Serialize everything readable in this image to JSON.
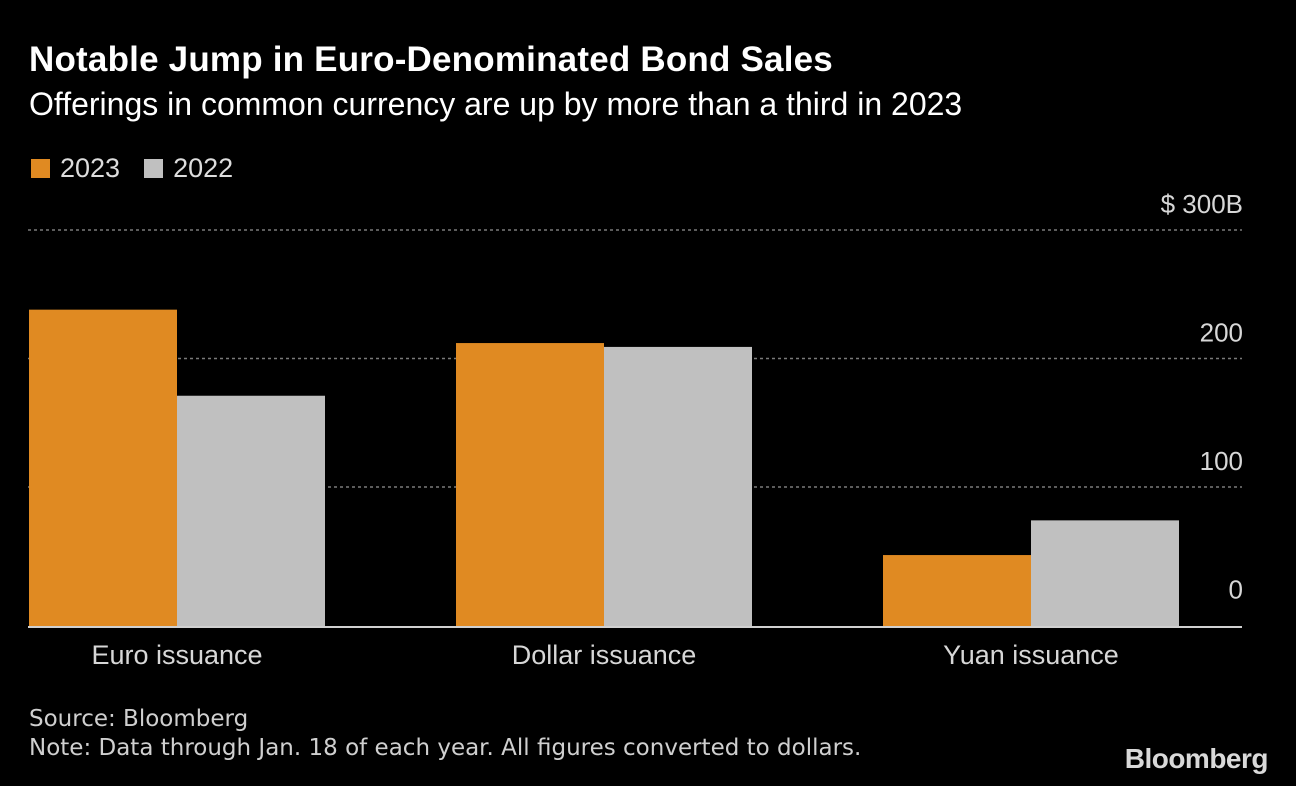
{
  "chart_data": {
    "type": "bar",
    "title": "Notable Jump in Euro-Denominated Bond Sales",
    "subtitle": "Offerings in common currency are up by more than a third in 2023",
    "categories": [
      "Euro issuance",
      "Dollar issuance",
      "Yuan issuance"
    ],
    "series": [
      {
        "name": "2023",
        "values": [
          238,
          212,
          47
        ],
        "color": "#e08a22"
      },
      {
        "name": "2022",
        "values": [
          171,
          209,
          74
        ],
        "color": "#c0c0c0"
      }
    ],
    "ylim": [
      -9,
      300
    ],
    "yticks": [
      {
        "value": 300,
        "label": "$ 300B"
      },
      {
        "value": 200,
        "label": "200"
      },
      {
        "value": 100,
        "label": "100"
      },
      {
        "value": 0,
        "label": "0"
      }
    ],
    "xlabel": "",
    "ylabel": "",
    "legend_position": "top-left",
    "grid": true
  },
  "footer": {
    "source": "Source: Bloomberg",
    "note": "Note: Data through Jan. 18 of each year. All figures converted to dollars."
  },
  "brand": {
    "logo_text": "Bloomberg"
  }
}
